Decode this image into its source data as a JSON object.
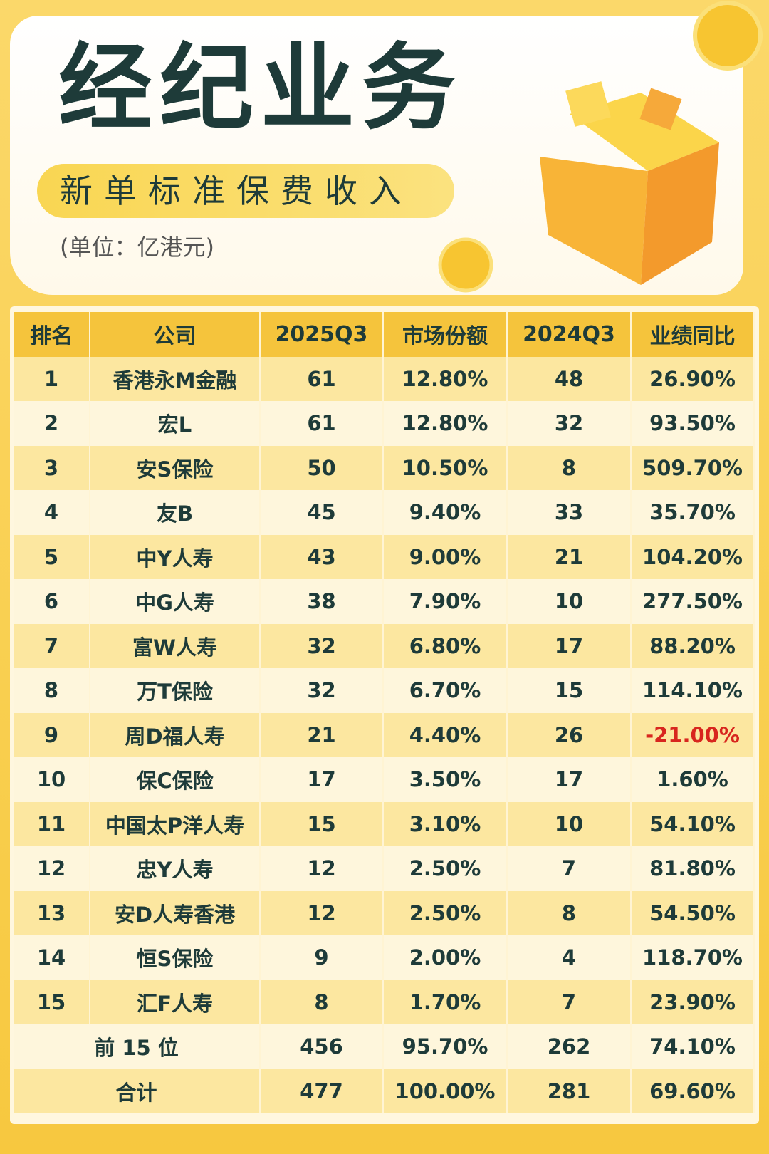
{
  "header": {
    "title": "经纪业务",
    "subtitle": "新单标准保费收入",
    "unit": "(单位：亿港元)"
  },
  "table": {
    "columns": [
      "排名",
      "公司",
      "2025Q3",
      "市场份额",
      "2024Q3",
      "业绩同比"
    ],
    "rows": [
      [
        "1",
        "香港永M金融",
        "61",
        "12.80%",
        "48",
        "26.90%"
      ],
      [
        "2",
        "宏L",
        "61",
        "12.80%",
        "32",
        "93.50%"
      ],
      [
        "3",
        "安S保险",
        "50",
        "10.50%",
        "8",
        "509.70%"
      ],
      [
        "4",
        "友B",
        "45",
        "9.40%",
        "33",
        "35.70%"
      ],
      [
        "5",
        "中Y人寿",
        "43",
        "9.00%",
        "21",
        "104.20%"
      ],
      [
        "6",
        "中G人寿",
        "38",
        "7.90%",
        "10",
        "277.50%"
      ],
      [
        "7",
        "富W人寿",
        "32",
        "6.80%",
        "17",
        "88.20%"
      ],
      [
        "8",
        "万T保险",
        "32",
        "6.70%",
        "15",
        "114.10%"
      ],
      [
        "9",
        "周D福人寿",
        "21",
        "4.40%",
        "26",
        "-21.00%"
      ],
      [
        "10",
        "保C保险",
        "17",
        "3.50%",
        "17",
        "1.60%"
      ],
      [
        "11",
        "中国太P洋人寿",
        "15",
        "3.10%",
        "10",
        "54.10%"
      ],
      [
        "12",
        "忠Y人寿",
        "12",
        "2.50%",
        "7",
        "81.80%"
      ],
      [
        "13",
        "安D人寿香港",
        "12",
        "2.50%",
        "8",
        "54.50%"
      ],
      [
        "14",
        "恒S保险",
        "9",
        "2.00%",
        "4",
        "118.70%"
      ],
      [
        "15",
        "汇F人寿",
        "8",
        "1.70%",
        "7",
        "23.90%"
      ]
    ],
    "summary": [
      [
        "前 15 位",
        "456",
        "95.70%",
        "262",
        "74.10%"
      ],
      [
        "合计",
        "477",
        "100.00%",
        "281",
        "69.60%"
      ]
    ]
  }
}
